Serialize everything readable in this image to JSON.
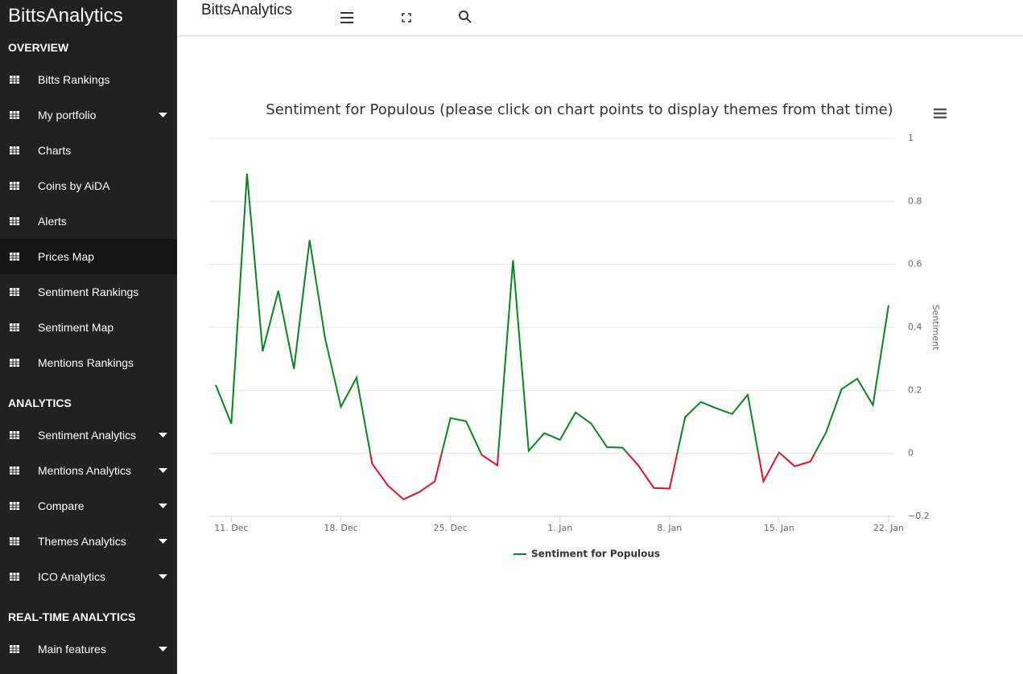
{
  "sidebar": {
    "brand": "BittsAnalytics",
    "sections": [
      {
        "title": "OVERVIEW",
        "items": [
          "Bitts Rankings",
          "My portfolio",
          "Charts",
          "Coins by AiDA",
          "Alerts",
          "Prices Map",
          "Sentiment Rankings",
          "Sentiment Map",
          "Mentions Rankings"
        ]
      },
      {
        "title": "ANALYTICS",
        "items": [
          "Sentiment Analytics",
          "Mentions Analytics",
          "Compare",
          "Themes Analytics",
          "ICO Analytics"
        ]
      },
      {
        "title": "REAL-TIME ANALYTICS",
        "items": [
          "Main features"
        ]
      }
    ]
  },
  "header": {
    "title": "BittsAnalytics"
  },
  "chart_data": {
    "type": "line",
    "title": "Sentiment for Populous (please click on chart points to display themes from that time)",
    "y_label": "Sentiment",
    "x": [
      "10. Dec",
      "11. Dec",
      "12. Dec",
      "13. Dec",
      "14. Dec",
      "15. Dec",
      "16. Dec",
      "17. Dec",
      "18. Dec",
      "19. Dec",
      "20. Dec",
      "21. Dec",
      "22. Dec",
      "23. Dec",
      "24. Dec",
      "25. Dec",
      "26. Dec",
      "27. Dec",
      "28. Dec",
      "29. Dec",
      "30. Dec",
      "31. Dec",
      "1. Jan",
      "2. Jan",
      "3. Jan",
      "4. Jan",
      "5. Jan",
      "6. Jan",
      "7. Jan",
      "8. Jan",
      "9. Jan",
      "10. Jan",
      "11. Jan",
      "12. Jan",
      "13. Jan",
      "14. Jan",
      "15. Jan",
      "16. Jan",
      "17. Jan",
      "18. Jan",
      "19. Jan",
      "20. Jan",
      "21. Jan",
      "22. Jan"
    ],
    "xticks": [
      "11. Dec",
      "18. Dec",
      "25. Dec",
      "1. Jan",
      "8. Jan",
      "15. Jan",
      "22. Jan"
    ],
    "series": [
      {
        "name": "Sentiment for Populous",
        "color": "#0a8420",
        "negative_color": "#e0102a",
        "values": [
          0.217,
          0.094,
          0.888,
          0.324,
          0.516,
          0.268,
          0.677,
          0.363,
          0.148,
          0.24,
          -0.033,
          -0.102,
          -0.146,
          -0.123,
          -0.089,
          0.112,
          0.102,
          -0.005,
          -0.038,
          0.613,
          0.008,
          0.064,
          0.043,
          0.13,
          0.094,
          0.02,
          0.018,
          -0.038,
          -0.11,
          -0.112,
          0.115,
          0.163,
          0.143,
          0.125,
          0.186,
          -0.089,
          0.003,
          -0.041,
          -0.026,
          0.066,
          0.204,
          0.237,
          0.153,
          0.47
        ]
      }
    ],
    "ylim": [
      -0.2,
      1
    ],
    "yticks": [
      {
        "value": -0.2,
        "label": "−0.2"
      },
      0,
      0.2,
      0.4,
      0.6,
      0.8,
      1
    ],
    "y_axis_side": "right",
    "grid": true,
    "legend": "bottom"
  }
}
